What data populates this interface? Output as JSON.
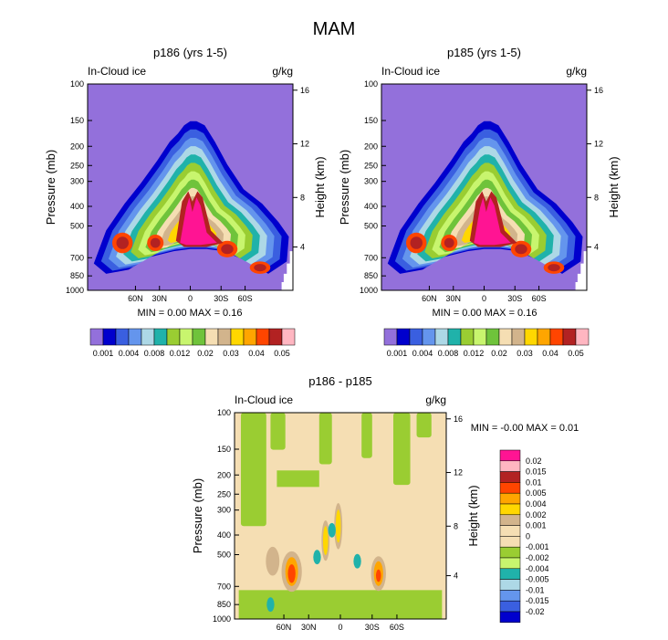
{
  "main_title": "MAM",
  "chart_data": [
    {
      "type": "heatmap",
      "title": "p186 (yrs 1-5)",
      "left_label": "In-Cloud ice",
      "right_label": "g/kg",
      "ylabel": "Pressure (mb)",
      "y2label": "Height (km)",
      "pressure_ticks": [
        "100",
        "150",
        "200",
        "250",
        "300",
        "400",
        "500",
        "700",
        "850",
        "1000"
      ],
      "height_ticks": [
        "16",
        "12",
        "8",
        "4"
      ],
      "lat_ticks": [
        "60N",
        "30N",
        "0",
        "30S",
        "60S"
      ],
      "stats": "MIN =   0.00   MAX =   0.16",
      "colorbar_labels": [
        "0.001",
        "0.004",
        "0.008",
        "0.012",
        "0.02",
        "0.03",
        "0.04",
        "0.05"
      ]
    },
    {
      "type": "heatmap",
      "title": "p185 (yrs 1-5)",
      "left_label": "In-Cloud ice",
      "right_label": "g/kg",
      "ylabel": "Pressure (mb)",
      "y2label": "Height (km)",
      "pressure_ticks": [
        "100",
        "150",
        "200",
        "250",
        "300",
        "400",
        "500",
        "700",
        "850",
        "1000"
      ],
      "height_ticks": [
        "16",
        "12",
        "8",
        "4"
      ],
      "lat_ticks": [
        "60N",
        "30N",
        "0",
        "30S",
        "60S"
      ],
      "stats": "MIN =   0.00   MAX =   0.16",
      "colorbar_labels": [
        "0.001",
        "0.004",
        "0.008",
        "0.012",
        "0.02",
        "0.03",
        "0.04",
        "0.05"
      ]
    },
    {
      "type": "heatmap",
      "title": "p186 - p185",
      "left_label": "In-Cloud ice",
      "right_label": "g/kg",
      "ylabel": "Pressure (mb)",
      "y2label": "Height (km)",
      "pressure_ticks": [
        "100",
        "150",
        "200",
        "250",
        "300",
        "400",
        "500",
        "700",
        "850",
        "1000"
      ],
      "height_ticks": [
        "16",
        "12",
        "8",
        "4"
      ],
      "lat_ticks": [
        "60N",
        "30N",
        "0",
        "30S",
        "60S"
      ],
      "stats": "MIN =  -0.00   MAX =   0.01",
      "colorbar_labels": [
        "0.02",
        "0.015",
        "0.01",
        "0.005",
        "0.004",
        "0.002",
        "0.001",
        "0",
        "-0.001",
        "-0.002",
        "-0.004",
        "-0.005",
        "-0.01",
        "-0.015",
        "-0.02"
      ]
    }
  ],
  "palette": {
    "abs": [
      "#9370db",
      "#0000cd",
      "#3a5fe0",
      "#6495ed",
      "#add8e6",
      "#20b2aa",
      "#9acd32",
      "#c8f56e",
      "#6fc33b",
      "#f5deb3",
      "#d2b48c",
      "#ffd700",
      "#ffa500",
      "#ff4500",
      "#b22222",
      "#ffb6c1",
      "#ff1493"
    ],
    "diff": [
      "#ff1493",
      "#ffb6c1",
      "#b22222",
      "#ff4500",
      "#ffa500",
      "#ffd700",
      "#d2b48c",
      "#f5deb3",
      "#f5deb3",
      "#9acd32",
      "#c8f56e",
      "#20b2aa",
      "#add8e6",
      "#6495ed",
      "#3a5fe0",
      "#0000cd",
      "#9370db"
    ]
  }
}
